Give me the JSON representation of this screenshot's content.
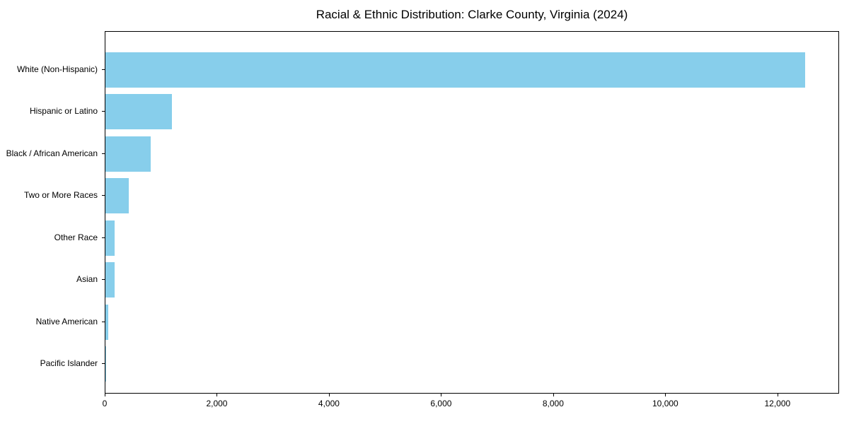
{
  "title": "Racial & Ethnic Distribution: Clarke County, Virginia (2024)",
  "chart_data": {
    "type": "bar",
    "orientation": "horizontal",
    "title": "Racial & Ethnic Distribution: Clarke County, Virginia (2024)",
    "categories": [
      "White (Non-Hispanic)",
      "Hispanic or Latino",
      "Black / African American",
      "Two or More Races",
      "Other Race",
      "Asian",
      "Native American",
      "Pacific Islander"
    ],
    "values": [
      12480,
      1190,
      805,
      420,
      165,
      160,
      45,
      10
    ],
    "xlabel": "",
    "ylabel": "",
    "xlim": [
      0,
      13100
    ],
    "xticks": [
      0,
      2000,
      4000,
      6000,
      8000,
      10000,
      12000
    ],
    "xtick_labels": [
      "0",
      "2,000",
      "4,000",
      "6,000",
      "8,000",
      "10,000",
      "12,000"
    ],
    "bar_color": "#87CEEB",
    "frame_color": "#000000",
    "text_color": "#000000",
    "background": "#ffffff",
    "grid": false,
    "legend": null
  }
}
